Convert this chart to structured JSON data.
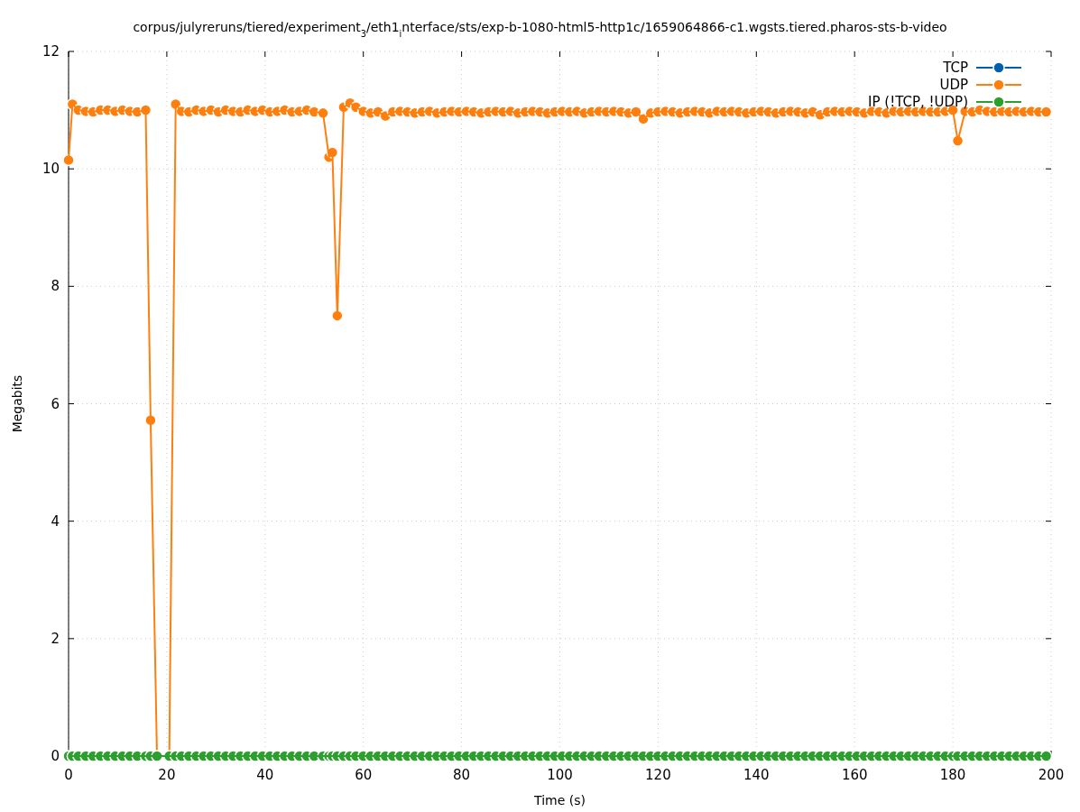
{
  "chart_data": {
    "type": "line",
    "title": "corpus/julyreruns/tiered/experiment$_{3}$/eth1$_{i}$nterface/sts/exp-b-1080-html5-http1c/1659064866-c1.wgsts.tiered.pharos-sts-b-video",
    "xlabel": "Time (s)",
    "ylabel": "Megabits",
    "xlim": [
      0,
      200
    ],
    "xticks": [
      0,
      20,
      40,
      60,
      80,
      100,
      120,
      140,
      160,
      180,
      200
    ],
    "ylim": [
      0,
      12
    ],
    "yticks": [
      0,
      2,
      4,
      6,
      8,
      10,
      12
    ],
    "grid": true,
    "legend": "top right",
    "marker": "circle",
    "line_style": "solid",
    "x": [
      0,
      0.8,
      2,
      3.5,
      5,
      6.5,
      8,
      9.5,
      11,
      12.5,
      14,
      15.7,
      16.7,
      18,
      20.5,
      21.8,
      23,
      24.5,
      26,
      27.5,
      29,
      30.5,
      32,
      33.5,
      35,
      36.5,
      38,
      39.5,
      41,
      42.5,
      44,
      45.5,
      47,
      48.5,
      50,
      51.8,
      53,
      53.7,
      54.7,
      56,
      57.3,
      58.5,
      60,
      61.5,
      63,
      64.5,
      66,
      67.5,
      69,
      70.5,
      72,
      73.5,
      75,
      76.5,
      78,
      79.5,
      81,
      82.5,
      84,
      85.5,
      87,
      88.5,
      90,
      91.5,
      93,
      94.5,
      96,
      97.5,
      99,
      100.5,
      102,
      103.5,
      105,
      106.5,
      108,
      109.5,
      111,
      112.5,
      114,
      115.5,
      117,
      118.5,
      120,
      121.5,
      123,
      124.5,
      126,
      127.5,
      129,
      130.5,
      132,
      133.5,
      135,
      136.5,
      138,
      139.5,
      141,
      142.5,
      144,
      145.5,
      147,
      148.5,
      150,
      151.5,
      153,
      154.5,
      156,
      157.5,
      159,
      160.5,
      162,
      163.5,
      165,
      166.5,
      168,
      169.5,
      171,
      172.5,
      174,
      175.5,
      177,
      178.5,
      180,
      181,
      182.5,
      184,
      185.5,
      187,
      188.5,
      190,
      191.5,
      193,
      194.5,
      196,
      197.5,
      199
    ],
    "series": [
      {
        "name": "TCP",
        "color": "#0060ad",
        "values": [
          null,
          null,
          null,
          null,
          null,
          null,
          null,
          null,
          null,
          null,
          null,
          null,
          null,
          null,
          null,
          null,
          null,
          null,
          null,
          null,
          null,
          null,
          null,
          null,
          null,
          null,
          null,
          null,
          null,
          null,
          null,
          null,
          null,
          null,
          null,
          null,
          null,
          null,
          null,
          null,
          null,
          null,
          null,
          null,
          null,
          null,
          null,
          null,
          null,
          null,
          null,
          null,
          null,
          null,
          null,
          null,
          null,
          null,
          null,
          null,
          null,
          null,
          null,
          null,
          null,
          null,
          null,
          null,
          null,
          null,
          null,
          null,
          null,
          null,
          null,
          null,
          null,
          null,
          null,
          null,
          null,
          null,
          null,
          null,
          null,
          null,
          null,
          null,
          null,
          null,
          null,
          null,
          null,
          null,
          null,
          null,
          null,
          null,
          null,
          null,
          null,
          null,
          null,
          null,
          null,
          null,
          null,
          null,
          null,
          null,
          null,
          null,
          null,
          null,
          null,
          null,
          null,
          null,
          null,
          null,
          null,
          null,
          null,
          null,
          null,
          null,
          null,
          null,
          null,
          null,
          null,
          null,
          null,
          null,
          null,
          null
        ]
      },
      {
        "name": "UDP",
        "color": "#ff7f0e",
        "values": [
          10.15,
          11.1,
          11.0,
          10.98,
          10.97,
          11.0,
          11.0,
          10.98,
          11.0,
          10.98,
          10.97,
          11.0,
          5.72,
          0,
          0,
          11.1,
          10.98,
          10.97,
          11.0,
          10.98,
          11.0,
          10.97,
          11.0,
          10.98,
          10.97,
          11.0,
          10.98,
          11.0,
          10.97,
          10.98,
          11.0,
          10.97,
          10.98,
          11.0,
          10.97,
          10.95,
          10.2,
          10.28,
          7.5,
          11.05,
          11.12,
          11.05,
          10.98,
          10.95,
          10.97,
          10.9,
          10.97,
          10.98,
          10.97,
          10.95,
          10.97,
          10.98,
          10.95,
          10.97,
          10.98,
          10.97,
          10.98,
          10.97,
          10.95,
          10.97,
          10.98,
          10.97,
          10.98,
          10.95,
          10.97,
          10.98,
          10.97,
          10.95,
          10.97,
          10.98,
          10.97,
          10.98,
          10.95,
          10.97,
          10.98,
          10.97,
          10.98,
          10.97,
          10.95,
          10.97,
          10.85,
          10.95,
          10.97,
          10.98,
          10.97,
          10.95,
          10.97,
          10.98,
          10.97,
          10.95,
          10.98,
          10.97,
          10.98,
          10.97,
          10.95,
          10.97,
          10.98,
          10.97,
          10.95,
          10.97,
          10.98,
          10.97,
          10.95,
          10.97,
          10.92,
          10.97,
          10.98,
          10.97,
          10.98,
          10.97,
          10.95,
          10.98,
          10.97,
          10.95,
          10.98,
          10.97,
          10.98,
          10.97,
          10.98,
          10.97,
          10.97,
          10.98,
          11.0,
          10.48,
          10.98,
          10.97,
          11.0,
          10.98,
          10.97,
          10.98,
          10.97,
          10.98,
          10.97,
          10.98,
          10.97,
          10.97
        ]
      },
      {
        "name": "IP (!TCP, !UDP)",
        "color": "#2ca02c",
        "values": [
          0,
          0,
          0,
          0,
          0,
          0,
          0,
          0,
          0,
          0,
          0,
          0,
          0,
          0,
          0,
          0,
          0,
          0,
          0,
          0,
          0,
          0,
          0,
          0,
          0,
          0,
          0,
          0,
          0,
          0,
          0,
          0,
          0,
          0,
          0,
          0,
          0,
          0,
          0,
          0,
          0,
          0,
          0,
          0,
          0,
          0,
          0,
          0,
          0,
          0,
          0,
          0,
          0,
          0,
          0,
          0,
          0,
          0,
          0,
          0,
          0,
          0,
          0,
          0,
          0,
          0,
          0,
          0,
          0,
          0,
          0,
          0,
          0,
          0,
          0,
          0,
          0,
          0,
          0,
          0,
          0,
          0,
          0,
          0,
          0,
          0,
          0,
          0,
          0,
          0,
          0,
          0,
          0,
          0,
          0,
          0,
          0,
          0,
          0,
          0,
          0,
          0,
          0,
          0,
          0,
          0,
          0,
          0,
          0,
          0,
          0,
          0,
          0,
          0,
          0,
          0,
          0,
          0,
          0,
          0,
          0,
          0,
          0,
          0,
          0,
          0,
          0,
          0,
          0,
          0,
          0,
          0,
          0,
          0,
          0,
          0
        ]
      }
    ]
  }
}
